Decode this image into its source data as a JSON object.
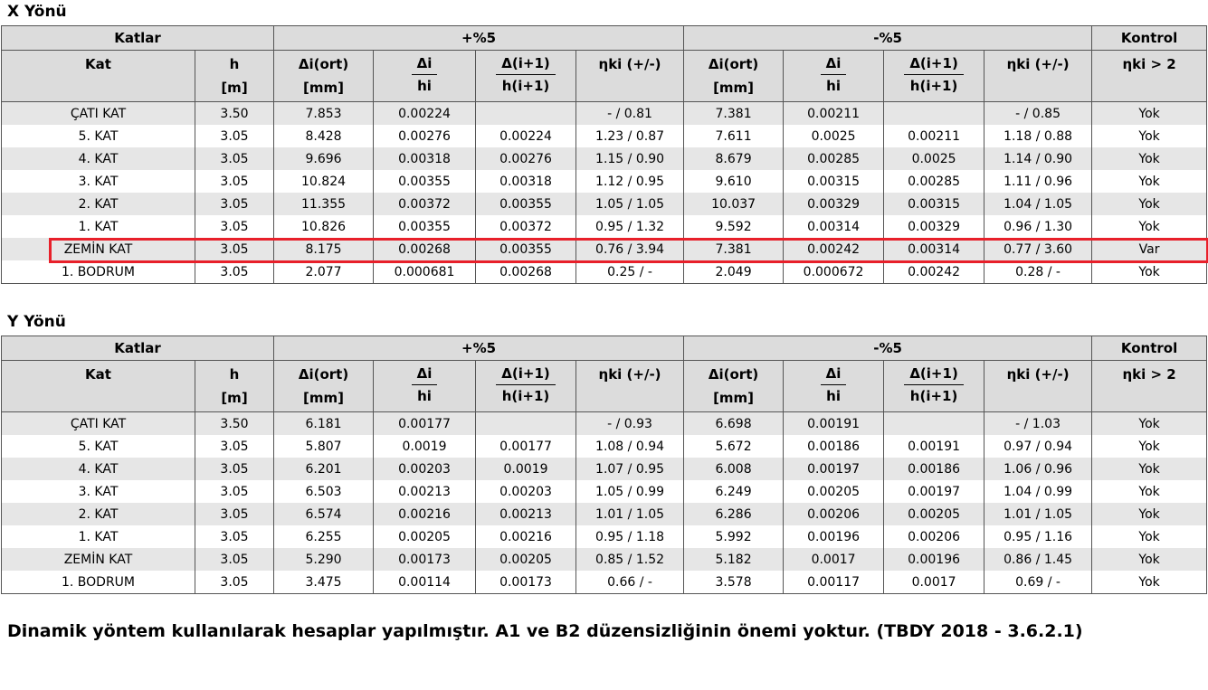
{
  "sections": [
    {
      "title": "X Yönü",
      "rows": [
        [
          "ÇATI KAT",
          "3.50",
          "7.853",
          "0.00224",
          "",
          "- / 0.81",
          "7.381",
          "0.00211",
          "",
          "- / 0.85",
          "Yok"
        ],
        [
          "5. KAT",
          "3.05",
          "8.428",
          "0.00276",
          "0.00224",
          "1.23 / 0.87",
          "7.611",
          "0.0025",
          "0.00211",
          "1.18 / 0.88",
          "Yok"
        ],
        [
          "4. KAT",
          "3.05",
          "9.696",
          "0.00318",
          "0.00276",
          "1.15 / 0.90",
          "8.679",
          "0.00285",
          "0.0025",
          "1.14 / 0.90",
          "Yok"
        ],
        [
          "3. KAT",
          "3.05",
          "10.824",
          "0.00355",
          "0.00318",
          "1.12 / 0.95",
          "9.610",
          "0.00315",
          "0.00285",
          "1.11 / 0.96",
          "Yok"
        ],
        [
          "2. KAT",
          "3.05",
          "11.355",
          "0.00372",
          "0.00355",
          "1.05 / 1.05",
          "10.037",
          "0.00329",
          "0.00315",
          "1.04 / 1.05",
          "Yok"
        ],
        [
          "1. KAT",
          "3.05",
          "10.826",
          "0.00355",
          "0.00372",
          "0.95 / 1.32",
          "9.592",
          "0.00314",
          "0.00329",
          "0.96 / 1.30",
          "Yok"
        ],
        [
          "ZEMİN KAT",
          "3.05",
          "8.175",
          "0.00268",
          "0.00355",
          "0.76 / 3.94",
          "7.381",
          "0.00242",
          "0.00314",
          "0.77 / 3.60",
          "Var"
        ],
        [
          "1. BODRUM",
          "3.05",
          "2.077",
          "0.000681",
          "0.00268",
          "0.25 / -",
          "2.049",
          "0.000672",
          "0.00242",
          "0.28 / -",
          "Yok"
        ]
      ]
    },
    {
      "title": "Y Yönü",
      "rows": [
        [
          "ÇATI KAT",
          "3.50",
          "6.181",
          "0.00177",
          "",
          "- / 0.93",
          "6.698",
          "0.00191",
          "",
          "- / 1.03",
          "Yok"
        ],
        [
          "5. KAT",
          "3.05",
          "5.807",
          "0.0019",
          "0.00177",
          "1.08 / 0.94",
          "5.672",
          "0.00186",
          "0.00191",
          "0.97 / 0.94",
          "Yok"
        ],
        [
          "4. KAT",
          "3.05",
          "6.201",
          "0.00203",
          "0.0019",
          "1.07 / 0.95",
          "6.008",
          "0.00197",
          "0.00186",
          "1.06 / 0.96",
          "Yok"
        ],
        [
          "3. KAT",
          "3.05",
          "6.503",
          "0.00213",
          "0.00203",
          "1.05 / 0.99",
          "6.249",
          "0.00205",
          "0.00197",
          "1.04 / 0.99",
          "Yok"
        ],
        [
          "2. KAT",
          "3.05",
          "6.574",
          "0.00216",
          "0.00213",
          "1.01 / 1.05",
          "6.286",
          "0.00206",
          "0.00205",
          "1.01 / 1.05",
          "Yok"
        ],
        [
          "1. KAT",
          "3.05",
          "6.255",
          "0.00205",
          "0.00216",
          "0.95 / 1.18",
          "5.992",
          "0.00196",
          "0.00206",
          "0.95 / 1.16",
          "Yok"
        ],
        [
          "ZEMİN KAT",
          "3.05",
          "5.290",
          "0.00173",
          "0.00205",
          "0.85 / 1.52",
          "5.182",
          "0.0017",
          "0.00196",
          "0.86 / 1.45",
          "Yok"
        ],
        [
          "1. BODRUM",
          "3.05",
          "3.475",
          "0.00114",
          "0.00173",
          "0.66 / -",
          "3.578",
          "0.00117",
          "0.0017",
          "0.69 / -",
          "Yok"
        ]
      ]
    }
  ],
  "headers": {
    "group_katlar": "Katlar",
    "group_plus": "+%5",
    "group_minus": "-%5",
    "group_kontrol": "Kontrol",
    "col_kat": "Kat",
    "col_h": "h",
    "col_h_unit": "[m]",
    "col_delta_ort": "Δi(ort)",
    "col_delta_ort_unit": "[mm]",
    "col_ratio_num": "Δi",
    "col_ratio_den": "hi",
    "col_ratio1_num": "Δ(i+1)",
    "col_ratio1_den": "h(i+1)",
    "col_eta": "ηki (+/-)",
    "col_kontrol": "ηki > 2"
  },
  "highlight": {
    "section": 0,
    "row": 6,
    "color": "#e8202a"
  },
  "note": "Dinamik yöntem kullanılarak hesaplar yapılmıştır. A1 ve B2 düzensizliğinin önemi yoktur. (TBDY 2018 - 3.6.2.1)"
}
